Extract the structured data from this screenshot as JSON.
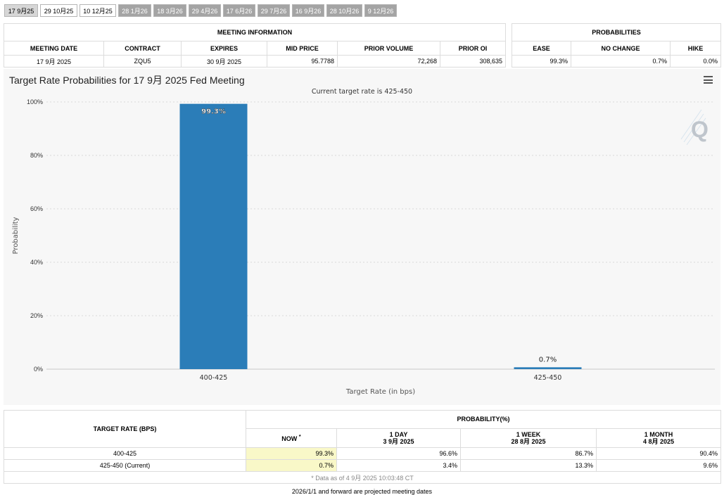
{
  "tabs": [
    {
      "label": "17 9月25",
      "style": "active"
    },
    {
      "label": "29 10月25",
      "style": "light"
    },
    {
      "label": "10 12月25",
      "style": "light"
    },
    {
      "label": "28 1月26",
      "style": "dark"
    },
    {
      "label": "18 3月26",
      "style": "dark"
    },
    {
      "label": "29 4月26",
      "style": "dark"
    },
    {
      "label": "17 6月26",
      "style": "dark"
    },
    {
      "label": "29 7月26",
      "style": "dark"
    },
    {
      "label": "16 9月26",
      "style": "dark"
    },
    {
      "label": "28 10月26",
      "style": "dark"
    },
    {
      "label": "9 12月26",
      "style": "dark"
    }
  ],
  "meeting_info": {
    "header": "MEETING INFORMATION",
    "columns": [
      "MEETING DATE",
      "CONTRACT",
      "EXPIRES",
      "MID PRICE",
      "PRIOR VOLUME",
      "PRIOR OI"
    ],
    "values": [
      "17 9月 2025",
      "ZQU5",
      "30 9月 2025",
      "95.7788",
      "72,268",
      "308,635"
    ]
  },
  "probabilities": {
    "header": "PROBABILITIES",
    "columns": [
      "EASE",
      "NO CHANGE",
      "HIKE"
    ],
    "values": [
      "99.3%",
      "0.7%",
      "0.0%"
    ]
  },
  "chart": {
    "title": "Target Rate Probabilities for 17 9月 2025 Fed Meeting",
    "subtitle": "Current target rate is 425-450",
    "logo": "Q"
  },
  "chart_data": {
    "type": "bar",
    "title": "Target Rate Probabilities for 17 9月 2025 Fed Meeting",
    "subtitle": "Current target rate is 425-450",
    "categories": [
      "400-425",
      "425-450"
    ],
    "values": [
      99.3,
      0.7
    ],
    "data_labels": [
      "99.3%",
      "0.7%"
    ],
    "xlabel": "Target Rate (in bps)",
    "ylabel": "Probability",
    "ylim": [
      0,
      100
    ],
    "yticks": [
      "0%",
      "20%",
      "40%",
      "60%",
      "80%",
      "100%"
    ],
    "grid": true,
    "bar_color": "#2b7db8"
  },
  "bottom_table": {
    "target_header": "TARGET RATE (BPS)",
    "prob_header": "PROBABILITY(%)",
    "columns": [
      {
        "line1": "NOW",
        "line2": "*"
      },
      {
        "line1": "1 DAY",
        "line2": "3 9月 2025"
      },
      {
        "line1": "1 WEEK",
        "line2": "28 8月 2025"
      },
      {
        "line1": "1 MONTH",
        "line2": "4 8月 2025"
      }
    ],
    "rows": [
      {
        "rate": "400-425",
        "values": [
          "99.3%",
          "96.6%",
          "86.7%",
          "90.4%"
        ]
      },
      {
        "rate": "425-450 (Current)",
        "values": [
          "0.7%",
          "3.4%",
          "13.3%",
          "9.6%"
        ]
      }
    ],
    "footnote": "* Data as of 4 9月 2025 10:03:48 CT"
  },
  "footer_note": "2026/1/1 and forward are projected meeting dates"
}
